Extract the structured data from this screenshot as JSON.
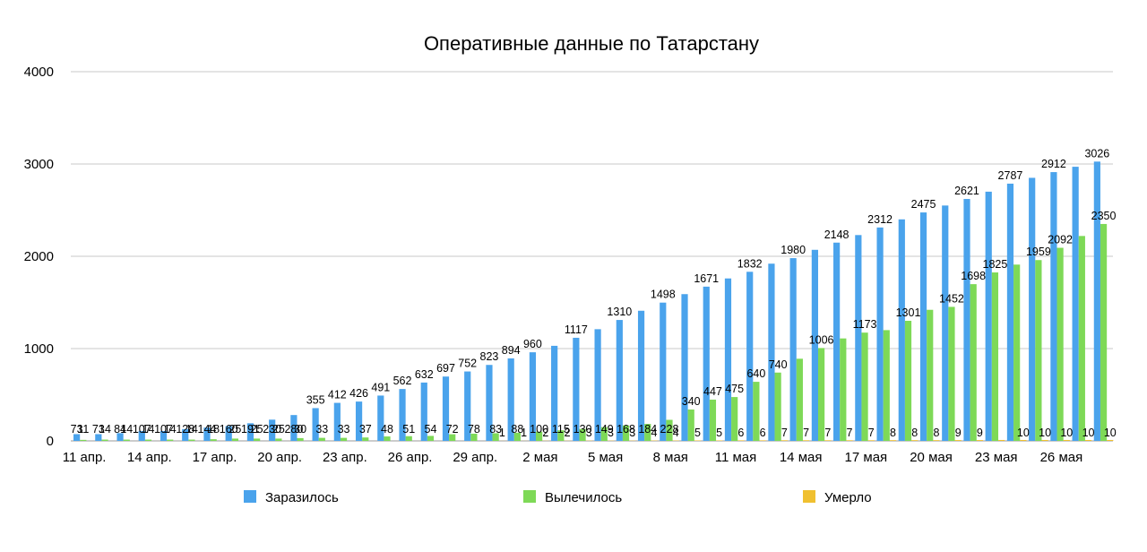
{
  "chart_data": {
    "type": "bar",
    "title": "Оперативные данные по Татарстану",
    "xlabel": "",
    "ylabel": "",
    "ylim": [
      0,
      4000
    ],
    "yticks": [
      0,
      1000,
      2000,
      3000,
      4000
    ],
    "grid": true,
    "legend_position": "bottom",
    "categories": [
      "11 апр.",
      "12 апр.",
      "13 апр.",
      "14 апр.",
      "15 апр.",
      "16 апр.",
      "17 апр.",
      "18 апр.",
      "19 апр.",
      "20 апр.",
      "21 апр.",
      "22 апр.",
      "23 апр.",
      "24 апр.",
      "25 апр.",
      "26 апр.",
      "27 апр.",
      "28 апр.",
      "29 апр.",
      "30 апр.",
      "1 мая",
      "2 мая",
      "3 мая",
      "4 мая",
      "5 мая",
      "6 мая",
      "7 мая",
      "8 мая",
      "9 мая",
      "10 мая",
      "11 мая",
      "12 мая",
      "13 мая",
      "14 мая",
      "15 мая",
      "16 мая",
      "17 мая",
      "18 мая",
      "19 мая",
      "20 мая",
      "21 мая",
      "22 мая",
      "23 мая",
      "24 мая",
      "25 мая",
      "26 мая",
      "27 мая",
      "28 мая"
    ],
    "x_tick_labels": [
      "11 апр.",
      "",
      "",
      "14 апр.",
      "",
      "",
      "17 апр.",
      "",
      "",
      "20 апр.",
      "",
      "",
      "23 апр.",
      "",
      "",
      "26 апр.",
      "",
      "",
      "29 апр.",
      "",
      "",
      "2 мая",
      "",
      "",
      "5 мая",
      "",
      "",
      "8 мая",
      "",
      "",
      "11 мая",
      "",
      "",
      "14 мая",
      "",
      "",
      "17 мая",
      "",
      "",
      "20 мая",
      "",
      "",
      "23 мая",
      "",
      "",
      "26 мая",
      "",
      ""
    ],
    "series": [
      {
        "name": "Заразилось",
        "color": "#4aa3ec",
        "values": [
          73,
          73,
          84,
          107,
          107,
          128,
          144,
          160,
          191,
          230,
          280,
          355,
          412,
          426,
          491,
          562,
          632,
          697,
          752,
          823,
          894,
          960,
          1030,
          1117,
          1210,
          1310,
          1410,
          1498,
          1590,
          1671,
          1760,
          1832,
          1920,
          1980,
          2070,
          2148,
          2230,
          2312,
          2400,
          2475,
          2550,
          2621,
          2700,
          2787,
          2850,
          2912,
          2970,
          3026
        ],
        "labels": [
          "73",
          "73",
          "84",
          "107",
          "107",
          "128",
          "144",
          "160",
          "191",
          "230",
          "280",
          "355",
          "412",
          "426",
          "491",
          "562",
          "632",
          "697",
          "752",
          "823",
          "894",
          "960",
          "",
          "1117",
          "",
          "1310",
          "",
          "1498",
          "",
          "1671",
          "",
          "1832",
          "",
          "1980",
          "",
          "2148",
          "",
          "2312",
          "",
          "2475",
          "",
          "2621",
          "",
          "2787",
          "",
          "2912",
          "",
          "3026"
        ]
      },
      {
        "name": "Вылечилось",
        "color": "#7ed957",
        "values": [
          11,
          14,
          14,
          14,
          14,
          14,
          18,
          25,
          25,
          25,
          30,
          33,
          33,
          37,
          48,
          51,
          54,
          72,
          78,
          83,
          88,
          100,
          115,
          130,
          149,
          168,
          184,
          228,
          340,
          447,
          475,
          640,
          740,
          890,
          1006,
          1110,
          1173,
          1200,
          1301,
          1420,
          1452,
          1698,
          1825,
          1910,
          1959,
          2092,
          2220,
          2350
        ],
        "labels": [
          "11",
          "14",
          "14",
          "14",
          "14",
          "14",
          "18",
          "25",
          "25",
          "25",
          "30",
          "33",
          "33",
          "37",
          "48",
          "51",
          "54",
          "72",
          "78",
          "83",
          "88",
          "100",
          "115",
          "130",
          "149",
          "168",
          "184",
          "228",
          "340",
          "447",
          "475",
          "640",
          "740",
          "",
          "1006",
          "",
          "1173",
          "",
          "1301",
          "",
          "1452",
          "1698",
          "1825",
          "",
          "1959",
          "2092",
          "",
          "2350"
        ]
      },
      {
        "name": "Умерло",
        "color": "#f0c030",
        "values": [
          0,
          0,
          0,
          0,
          0,
          0,
          0,
          0,
          0,
          0,
          0,
          0,
          0,
          0,
          0,
          0,
          0,
          0,
          0,
          1,
          1,
          2,
          2,
          3,
          3,
          3,
          4,
          4,
          5,
          5,
          6,
          6,
          7,
          7,
          7,
          7,
          7,
          8,
          8,
          8,
          9,
          9,
          10,
          10,
          10,
          10,
          10,
          10
        ],
        "labels": [
          "",
          "",
          "",
          "",
          "",
          "",
          "",
          "",
          "",
          "",
          "",
          "",
          "",
          "",
          "",
          "",
          "",
          "",
          "",
          "1",
          "1",
          "2",
          "2",
          "3",
          "3",
          "3",
          "4",
          "4",
          "5",
          "5",
          "6",
          "6",
          "7",
          "7",
          "7",
          "7",
          "7",
          "8",
          "8",
          "8",
          "9",
          "9",
          "",
          "10",
          "10",
          "10",
          "10",
          "10"
        ]
      }
    ]
  }
}
